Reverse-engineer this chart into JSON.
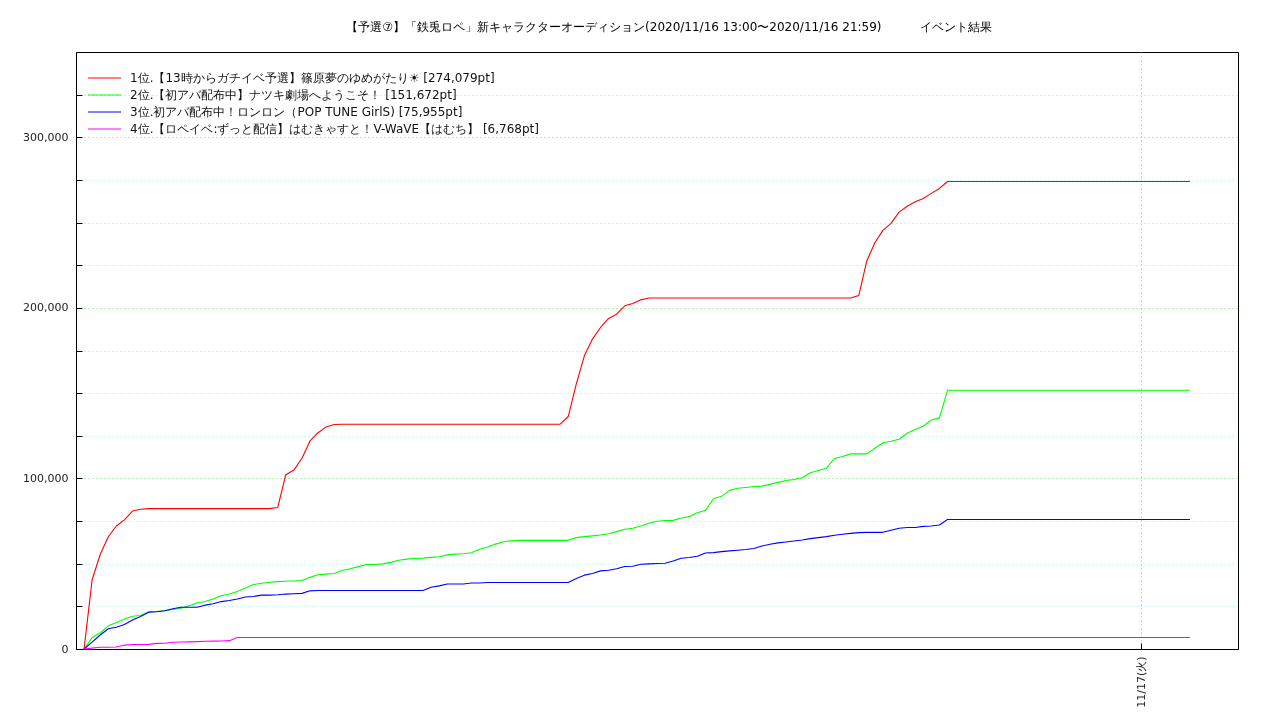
{
  "chart_data": {
    "type": "line",
    "title": "【予選⑦】「鉄兎ロペ」新キャラクターオーディション(2020/11/16 13:00〜2020/11/16 21:59)          イベント結果",
    "categories": [
      null,
      null,
      null,
      null,
      null,
      null,
      null,
      null,
      null,
      null,
      null,
      null,
      null,
      null,
      null,
      null,
      null,
      null,
      null,
      null,
      null,
      null,
      null,
      null,
      null,
      null,
      null,
      null,
      null,
      null,
      null,
      null,
      null,
      null,
      null,
      null,
      null,
      null,
      null,
      null,
      null,
      null,
      null,
      null,
      null,
      null,
      null,
      null,
      null,
      null,
      null,
      null,
      null,
      null,
      null,
      null,
      null,
      null,
      null,
      null,
      null,
      null,
      null,
      null,
      null,
      null,
      null,
      null,
      null,
      null,
      null,
      null,
      null,
      null,
      null,
      null,
      null,
      null,
      null,
      null,
      null,
      null,
      null,
      null,
      null,
      null,
      null,
      null,
      null,
      null,
      null,
      null,
      null,
      null,
      null,
      null,
      null,
      null,
      null,
      null,
      null,
      null,
      null,
      null,
      null,
      null,
      null,
      null,
      null,
      null,
      null,
      null,
      null,
      null,
      null,
      null,
      null,
      null,
      null,
      null,
      null,
      null,
      null,
      null,
      null,
      null,
      null,
      null,
      null,
      null,
      null,
      "11/17(火)",
      null,
      null,
      null,
      null,
      null,
      null
    ],
    "ylim": [
      0,
      350000
    ],
    "yticks": [
      {
        "value": 0,
        "label": "0"
      },
      {
        "value": 25000,
        "label": null
      },
      {
        "value": 50000,
        "label": null
      },
      {
        "value": 75000,
        "label": null
      },
      {
        "value": 100000,
        "label": "100,000"
      },
      {
        "value": 125000,
        "label": null
      },
      {
        "value": 150000,
        "label": null
      },
      {
        "value": 175000,
        "label": null
      },
      {
        "value": 200000,
        "label": "200,000"
      },
      {
        "value": 225000,
        "label": null
      },
      {
        "value": 250000,
        "label": null
      },
      {
        "value": 275000,
        "label": null
      },
      {
        "value": 300000,
        "label": "300,000"
      },
      {
        "value": 325000,
        "label": null
      }
    ],
    "grid": true,
    "legend": "top left",
    "series": [
      {
        "name": "1位.【13時からガチイベ予選】篠原夢のゆめがたり☀ [274,079pt]",
        "color": "#ff0000",
        "values": [
          0,
          40600,
          55400,
          65800,
          72100,
          75700,
          80900,
          81900,
          82300,
          82300,
          82300,
          82300,
          82300,
          82300,
          82300,
          82300,
          82300,
          82300,
          82300,
          82300,
          82300,
          82300,
          82300,
          82300,
          83000,
          102200,
          104900,
          111800,
          122000,
          126800,
          130200,
          131600,
          131800,
          131800,
          131800,
          131800,
          131800,
          131800,
          131800,
          131800,
          131800,
          131800,
          131800,
          131800,
          131800,
          131800,
          131800,
          131800,
          131800,
          131800,
          131800,
          131800,
          131800,
          131800,
          131800,
          131800,
          131800,
          131800,
          131800,
          131800,
          136300,
          155400,
          171900,
          181700,
          188500,
          193800,
          196300,
          201200,
          202500,
          204700,
          205800,
          205800,
          205800,
          205800,
          205800,
          205800,
          205800,
          205800,
          205800,
          205800,
          205800,
          205800,
          205800,
          205800,
          205800,
          205800,
          205800,
          205800,
          205800,
          205800,
          205800,
          205800,
          205800,
          205800,
          205800,
          205800,
          207200,
          227500,
          238200,
          245400,
          249500,
          256100,
          259600,
          262200,
          264100,
          267100,
          270000,
          274079,
          274079,
          274079,
          274079,
          274079,
          274079,
          274079,
          274079,
          274079,
          274079,
          274079,
          274079,
          274079,
          274079,
          274079,
          274079,
          274079,
          274079,
          274079,
          274079,
          274079,
          274079,
          274079,
          274079,
          274079,
          274079,
          274079,
          274079,
          274079,
          274079,
          274079
        ]
      },
      {
        "name": "2位.【初アバ配布中】ナツキ劇場へようこそ！ [151,672pt]",
        "color": "#00ff00",
        "values": [
          0,
          6700,
          9400,
          13600,
          15500,
          17600,
          19200,
          19600,
          21700,
          22000,
          22400,
          23200,
          23900,
          25300,
          27000,
          27800,
          29300,
          31200,
          32200,
          33700,
          35700,
          37800,
          38500,
          39100,
          39500,
          39700,
          39900,
          40100,
          42000,
          43500,
          43900,
          44300,
          46000,
          47000,
          48300,
          49500,
          49500,
          49900,
          50800,
          52000,
          52700,
          53100,
          53300,
          53700,
          54100,
          55200,
          55600,
          55800,
          56400,
          58500,
          59800,
          61500,
          62900,
          63500,
          63700,
          63700,
          63700,
          63700,
          63700,
          63700,
          63700,
          65300,
          65900,
          66300,
          66800,
          67600,
          68800,
          70200,
          70800,
          72100,
          73700,
          74900,
          75300,
          75400,
          76800,
          77600,
          79900,
          81300,
          88100,
          89500,
          93000,
          94200,
          94700,
          95300,
          95500,
          96500,
          97700,
          98800,
          99400,
          100400,
          103300,
          104700,
          106000,
          111700,
          112900,
          114400,
          114400,
          114400,
          117700,
          120900,
          121800,
          123000,
          126500,
          128700,
          130600,
          134300,
          135500,
          151672,
          151672,
          151672,
          151672,
          151672,
          151672,
          151672,
          151672,
          151672,
          151672,
          151672,
          151672,
          151672,
          151672,
          151672,
          151672,
          151672,
          151672,
          151672,
          151672,
          151672,
          151672,
          151672,
          151672,
          151672,
          151672,
          151672,
          151672,
          151672,
          151672,
          151672
        ]
      },
      {
        "name": "3位.初アバ配布中！ロンロン（POP TUNE GirlS) [75,955pt]",
        "color": "#0000ff",
        "values": [
          0,
          4000,
          8200,
          11900,
          12800,
          14400,
          17000,
          19100,
          21600,
          21800,
          22400,
          23600,
          24500,
          24500,
          24500,
          25700,
          26500,
          27800,
          28400,
          29300,
          30500,
          30800,
          31600,
          31600,
          31800,
          32200,
          32400,
          32600,
          34100,
          34300,
          34300,
          34300,
          34300,
          34300,
          34300,
          34300,
          34300,
          34300,
          34300,
          34300,
          34300,
          34300,
          34300,
          36200,
          37000,
          38100,
          38100,
          38100,
          38700,
          38700,
          39000,
          39000,
          39000,
          39000,
          39000,
          39000,
          39000,
          39000,
          39000,
          39000,
          39000,
          41300,
          43300,
          44300,
          45800,
          46200,
          47000,
          48400,
          48500,
          49700,
          49900,
          50100,
          50300,
          51600,
          53200,
          53600,
          54400,
          56300,
          56500,
          57100,
          57500,
          57900,
          58300,
          58900,
          60400,
          61400,
          62200,
          62700,
          63300,
          63900,
          64700,
          65300,
          65900,
          66700,
          67300,
          67800,
          68200,
          68400,
          68400,
          68400,
          69600,
          70800,
          71200,
          71200,
          71900,
          72100,
          72700,
          75955,
          75955,
          75955,
          75955,
          75955,
          75955,
          75955,
          75955,
          75955,
          75955,
          75955,
          75955,
          75955,
          75955,
          75955,
          75955,
          75955,
          75955,
          75955,
          75955,
          75955,
          75955,
          75955,
          75955,
          75955,
          75955,
          75955,
          75955,
          75955,
          75955,
          75955
        ]
      },
      {
        "name": "4位.【ロペイベ:ずっと配信】はむきゃすと！V-WaVE【はむち】 [6,768pt]",
        "color": "#ff00ff",
        "values": [
          0,
          500,
          1000,
          1000,
          1200,
          2300,
          2600,
          2600,
          2700,
          3300,
          3400,
          4000,
          4100,
          4200,
          4300,
          4500,
          4600,
          4700,
          4900,
          6768,
          6768,
          6768,
          6768,
          6768,
          6768,
          6768,
          6768,
          6768,
          6768,
          6768,
          6768,
          6768,
          6768,
          6768,
          6768,
          6768,
          6768,
          6768,
          6768,
          6768,
          6768,
          6768,
          6768,
          6768,
          6768,
          6768,
          6768,
          6768,
          6768,
          6768,
          6768,
          6768,
          6768,
          6768,
          6768,
          6768,
          6768,
          6768,
          6768,
          6768,
          6768,
          6768,
          6768,
          6768,
          6768,
          6768,
          6768,
          6768,
          6768,
          6768,
          6768,
          6768,
          6768,
          6768,
          6768,
          6768,
          6768,
          6768,
          6768,
          6768,
          6768,
          6768,
          6768,
          6768,
          6768,
          6768,
          6768,
          6768,
          6768,
          6768,
          6768,
          6768,
          6768,
          6768,
          6768,
          6768,
          6768,
          6768,
          6768,
          6768,
          6768,
          6768,
          6768,
          6768,
          6768,
          6768,
          6768,
          6768,
          6768,
          6768,
          6768,
          6768,
          6768,
          6768,
          6768,
          6768,
          6768,
          6768,
          6768,
          6768,
          6768,
          6768,
          6768,
          6768,
          6768,
          6768,
          6768,
          6768,
          6768,
          6768,
          6768,
          6768,
          6768,
          6768,
          6768,
          6768,
          6768,
          6768
        ]
      }
    ]
  }
}
